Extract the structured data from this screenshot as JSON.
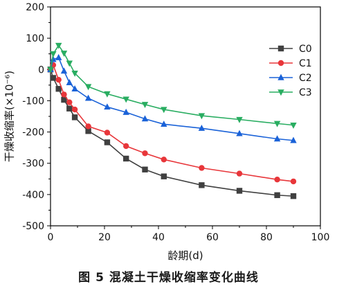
{
  "caption": "图 5 混凝土干燥收缩率变化曲线",
  "chart_data": {
    "type": "line",
    "xlabel": "龄期(d)",
    "ylabel": "干燥收缩率(×10⁻⁶)",
    "xlim": [
      0,
      100
    ],
    "ylim": [
      -500,
      200
    ],
    "xticks": [
      0,
      20,
      40,
      60,
      80,
      100
    ],
    "yticks": [
      -500,
      -400,
      -300,
      -200,
      -100,
      0,
      100,
      200
    ],
    "grid": false,
    "legend_position": "top-right",
    "series": [
      {
        "name": "C0",
        "color": "#404040",
        "marker": "square",
        "points": [
          [
            0,
            0
          ],
          [
            1,
            -27
          ],
          [
            3,
            -62
          ],
          [
            5,
            -97
          ],
          [
            7,
            -125
          ],
          [
            9,
            -153
          ],
          [
            14,
            -197
          ],
          [
            21,
            -233
          ],
          [
            28,
            -285
          ],
          [
            35,
            -320
          ],
          [
            42,
            -342
          ],
          [
            56,
            -370
          ],
          [
            70,
            -388
          ],
          [
            84,
            -402
          ],
          [
            90,
            -405
          ]
        ]
      },
      {
        "name": "C1",
        "color": "#e8363a",
        "marker": "circle",
        "points": [
          [
            0,
            0
          ],
          [
            1,
            14
          ],
          [
            3,
            -33
          ],
          [
            5,
            -80
          ],
          [
            7,
            -105
          ],
          [
            9,
            -128
          ],
          [
            14,
            -182
          ],
          [
            21,
            -202
          ],
          [
            28,
            -245
          ],
          [
            35,
            -268
          ],
          [
            42,
            -288
          ],
          [
            56,
            -315
          ],
          [
            70,
            -333
          ],
          [
            84,
            -352
          ],
          [
            90,
            -358
          ]
        ]
      },
      {
        "name": "C2",
        "color": "#1a62d8",
        "marker": "triangle-up",
        "points": [
          [
            0,
            0
          ],
          [
            1,
            32
          ],
          [
            3,
            38
          ],
          [
            5,
            -5
          ],
          [
            7,
            -42
          ],
          [
            9,
            -62
          ],
          [
            14,
            -92
          ],
          [
            21,
            -120
          ],
          [
            28,
            -137
          ],
          [
            35,
            -158
          ],
          [
            42,
            -175
          ],
          [
            56,
            -188
          ],
          [
            70,
            -205
          ],
          [
            84,
            -222
          ],
          [
            90,
            -227
          ]
        ]
      },
      {
        "name": "C3",
        "color": "#29ad61",
        "marker": "triangle-down",
        "points": [
          [
            0,
            0
          ],
          [
            1,
            50
          ],
          [
            3,
            77
          ],
          [
            5,
            52
          ],
          [
            7,
            20
          ],
          [
            9,
            -12
          ],
          [
            14,
            -55
          ],
          [
            21,
            -78
          ],
          [
            28,
            -95
          ],
          [
            35,
            -112
          ],
          [
            42,
            -128
          ],
          [
            56,
            -148
          ],
          [
            70,
            -160
          ],
          [
            84,
            -173
          ],
          [
            90,
            -178
          ]
        ]
      }
    ]
  }
}
